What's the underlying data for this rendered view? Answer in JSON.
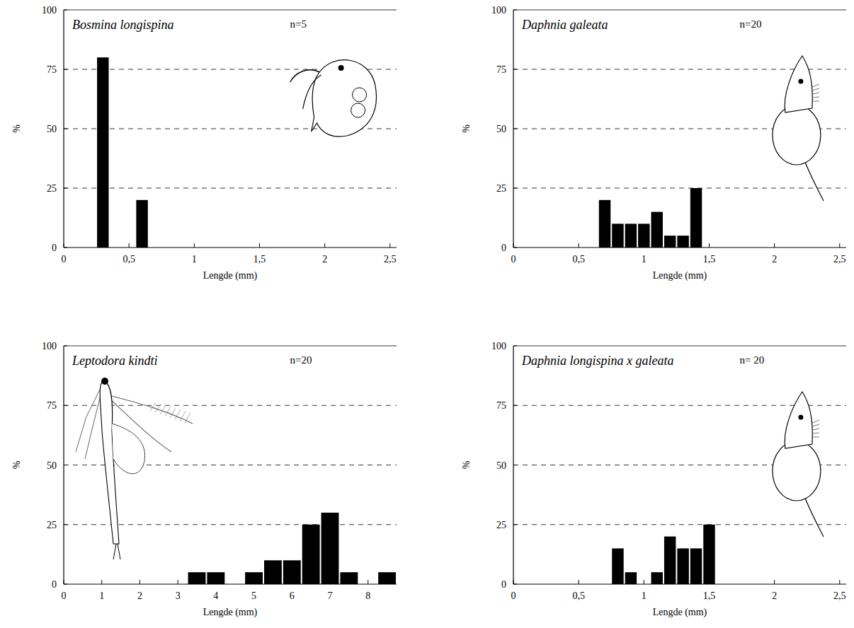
{
  "chart_data": [
    {
      "type": "histogram",
      "title": "Bosmina longispina",
      "annotations": [
        "n=5"
      ],
      "x_label": "Lengde (mm)",
      "y_label": "%",
      "bins": [
        0.25,
        0.35,
        0.45,
        0.55,
        0.65
      ],
      "values": [
        80,
        0,
        0,
        20
      ],
      "color": "#000000",
      "xlim": [
        0,
        2.55
      ],
      "xticks": [
        0,
        {
          "value": 0.5,
          "label": "0,5"
        },
        1,
        {
          "value": 1.5,
          "label": "1,5"
        },
        2,
        {
          "value": 2.5,
          "label": "2,5"
        }
      ],
      "ylim": [
        0,
        100
      ],
      "yticks": [
        0,
        25,
        50,
        75,
        100
      ],
      "grid": true
    },
    {
      "type": "histogram",
      "title": "Daphnia galeata",
      "annotations": [
        "n=20"
      ],
      "x_label": "Lengde (mm)",
      "y_label": "%",
      "bins": [
        0.65,
        0.75,
        0.85,
        0.95,
        1.05,
        1.15,
        1.25,
        1.35,
        1.45
      ],
      "values": [
        20,
        10,
        10,
        10,
        15,
        5,
        5,
        25
      ],
      "color": "#000000",
      "xlim": [
        0,
        2.55
      ],
      "xticks": [
        0,
        {
          "value": 0.5,
          "label": "0,5"
        },
        1,
        {
          "value": 1.5,
          "label": "1,5"
        },
        2,
        {
          "value": 2.5,
          "label": "2,5"
        }
      ],
      "ylim": [
        0,
        100
      ],
      "yticks": [
        0,
        25,
        50,
        75,
        100
      ],
      "grid": true
    },
    {
      "type": "histogram",
      "title": "Leptodora kindti",
      "annotations": [
        "n=20"
      ],
      "x_label": "Lengde (mm)",
      "y_label": "%",
      "bins": [
        3.25,
        3.75,
        4.25,
        4.75,
        5.25,
        5.75,
        6.25,
        6.75,
        7.25,
        7.75,
        8.25,
        8.75
      ],
      "values": [
        5,
        5,
        0,
        5,
        10,
        10,
        25,
        30,
        5,
        0,
        5
      ],
      "color": "#000000",
      "xlim": [
        0,
        8.75
      ],
      "xticks": [
        0,
        1,
        2,
        3,
        4,
        5,
        6,
        7,
        8
      ],
      "ylim": [
        0,
        100
      ],
      "yticks": [
        0,
        25,
        50,
        75,
        100
      ],
      "grid": true
    },
    {
      "type": "histogram",
      "title": "Daphnia longispina x galeata",
      "annotations": [
        "n= 20"
      ],
      "x_label": "Lengde (mm)",
      "y_label": "%",
      "bins": [
        0.75,
        0.85,
        0.95,
        1.05,
        1.15,
        1.25,
        1.35,
        1.45,
        1.55
      ],
      "values": [
        15,
        5,
        0,
        5,
        20,
        15,
        15,
        25
      ],
      "color": "#000000",
      "xlim": [
        0,
        2.55
      ],
      "xticks": [
        0,
        {
          "value": 0.5,
          "label": "0,5"
        },
        1,
        {
          "value": 1.5,
          "label": "1,5"
        },
        2,
        {
          "value": 2.5,
          "label": "2,5"
        }
      ],
      "ylim": [
        0,
        100
      ],
      "yticks": [
        0,
        25,
        50,
        75,
        100
      ],
      "grid": true
    }
  ]
}
